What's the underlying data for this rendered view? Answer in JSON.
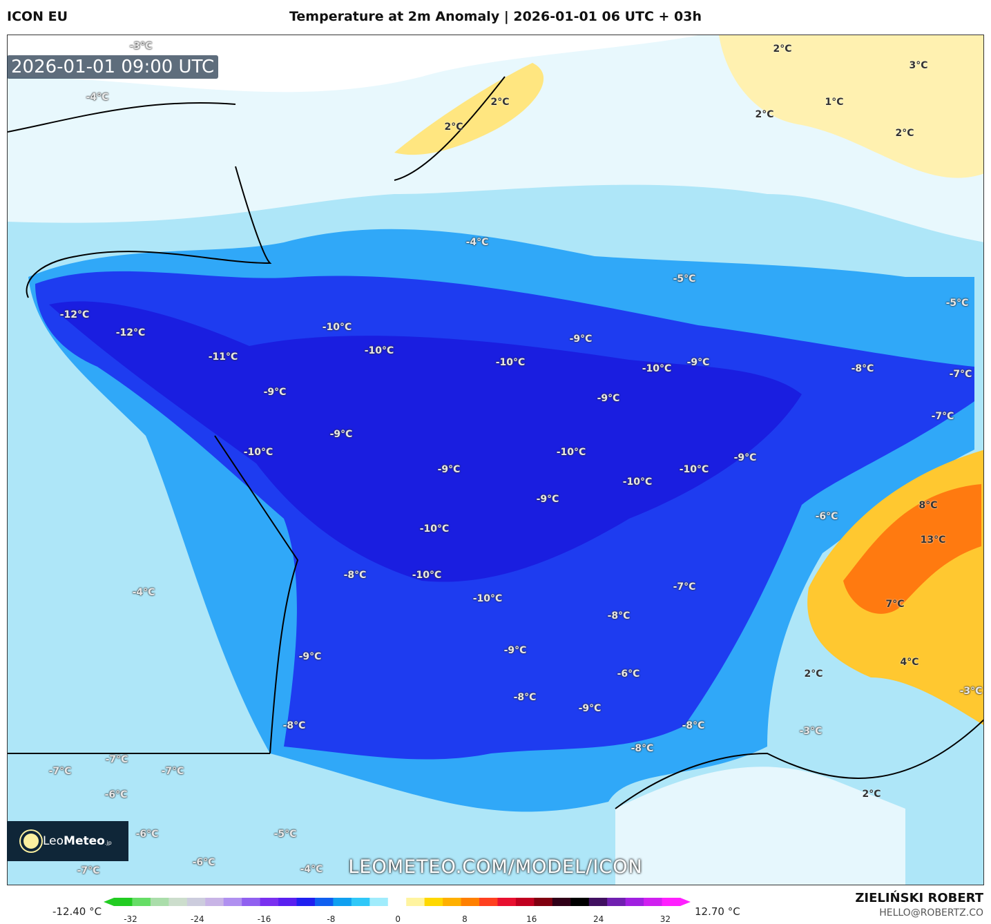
{
  "header": {
    "model": "ICON EU",
    "title": "Temperature at 2m Anomaly | 2026-01-01 06 UTC + 03h"
  },
  "map": {
    "valid_time": "2026-01-01 09:00 UTC",
    "watermark_url": "LEOMETEO.COM/MODEL/ICON",
    "logo": {
      "text_light": "Leo",
      "text_bold": "Meteo",
      "suffix": ".jp"
    },
    "labels": [
      "-3°C",
      "-4°C",
      "2°C",
      "2°C",
      "2°C",
      "3°C",
      "1°C",
      "2°C",
      "2°C",
      "-4°C",
      "-5°C",
      "-5°C",
      "-12°C",
      "-12°C",
      "-11°C",
      "-10°C",
      "-10°C",
      "-10°C",
      "-9°C",
      "-10°C",
      "-9°C",
      "-8°C",
      "-7°C",
      "-9°C",
      "-7°C",
      "-9°C",
      "-9°C",
      "-10°C",
      "-9°C",
      "-10°C",
      "-10°C",
      "-10°C",
      "-9°C",
      "-9°C",
      "8°C",
      "-6°C",
      "13°C",
      "-10°C",
      "-8°C",
      "-10°C",
      "-10°C",
      "-7°C",
      "-4°C",
      "7°C",
      "-8°C",
      "-9°C",
      "-9°C",
      "-6°C",
      "2°C",
      "4°C",
      "-3°C",
      "-8°C",
      "-9°C",
      "-8°C",
      "-8°C",
      "-3°C",
      "-8°C",
      "-7°C",
      "-7°C",
      "-7°C",
      "-6°C",
      "2°C",
      "-6°C",
      "-5°C",
      "-6°C",
      "-7°C",
      "-4°C"
    ]
  },
  "colorbar": {
    "min_label": "-12.40 °C",
    "max_label": "12.70 °C",
    "ticks": [
      "-32",
      "-24",
      "-16",
      "-8",
      "0",
      "8",
      "16",
      "24",
      "32"
    ],
    "colors": [
      "#22cc22",
      "#66dd66",
      "#aaddaa",
      "#ccddcc",
      "#ccccdd",
      "#c8b4e6",
      "#b090f0",
      "#9060f0",
      "#7a30f0",
      "#5a20f0",
      "#2020f0",
      "#1060f0",
      "#10a0f0",
      "#30c8f8",
      "#a0ecfc",
      "#ffffff",
      "#fff4a0",
      "#ffd800",
      "#ffb000",
      "#ff8000",
      "#ff4020",
      "#e81030",
      "#c00020",
      "#800010",
      "#300018",
      "#000000",
      "#401060",
      "#7020b0",
      "#a020e0",
      "#d020f0",
      "#ff20ff"
    ]
  },
  "footer": {
    "author": "ZIELIŃSKI ROBERT",
    "email": "HELLO@ROBERTZ.CO"
  }
}
